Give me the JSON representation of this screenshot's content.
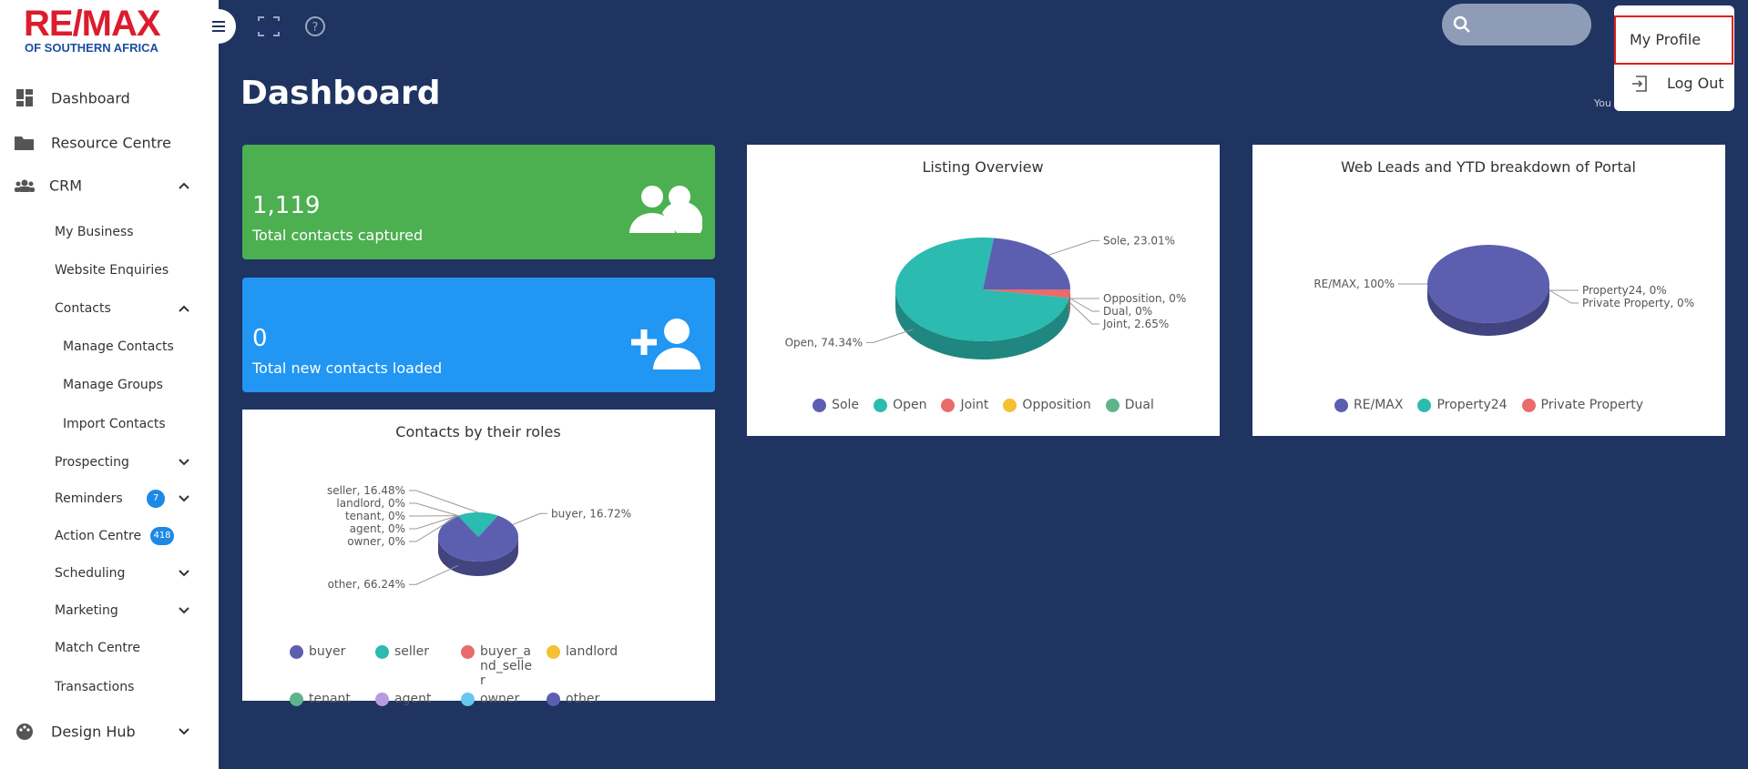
{
  "logo": {
    "brand": "RE/MAX",
    "region": "OF SOUTHERN AFRICA"
  },
  "sidebar": {
    "items": [
      {
        "label": "Dashboard"
      },
      {
        "label": "Resource Centre"
      },
      {
        "label": "CRM"
      },
      {
        "label": "My Business"
      },
      {
        "label": "Website Enquiries"
      },
      {
        "label": "Contacts"
      },
      {
        "label": "Manage Contacts"
      },
      {
        "label": "Manage Groups"
      },
      {
        "label": "Import Contacts"
      },
      {
        "label": "Prospecting"
      },
      {
        "label": "Reminders",
        "badge": 7
      },
      {
        "label": "Action Centre",
        "badge": 418
      },
      {
        "label": "Scheduling"
      },
      {
        "label": "Marketing"
      },
      {
        "label": "Match Centre"
      },
      {
        "label": "Transactions"
      },
      {
        "label": "Design Hub"
      }
    ]
  },
  "page_title": "Dashboard",
  "partial_text": "You",
  "user_menu": {
    "items": [
      "My Profile",
      "Log Out"
    ]
  },
  "stats": [
    {
      "value": "1,119",
      "label": "Total contacts captured"
    },
    {
      "value": "0",
      "label": "Total new contacts loaded"
    }
  ],
  "charts": [
    {
      "type": "pie",
      "title": "Listing Overview",
      "categories": [
        "Sole",
        "Open",
        "Joint",
        "Opposition",
        "Dual"
      ],
      "values": [
        23.01,
        74.34,
        2.65,
        0,
        0
      ],
      "value_labels": [
        "Sole, 23.01%",
        "Open, 74.34%",
        "Joint, 2.65%",
        "Opposition, 0%",
        "Dual, 0%"
      ],
      "colors": [
        "#5c5fb0",
        "#2bbbb0",
        "#e96b6b",
        "#f5c033",
        "#5fb58a"
      ]
    },
    {
      "type": "pie",
      "title": "Web Leads and YTD breakdown of Portal",
      "categories": [
        "RE/MAX",
        "Property24",
        "Private Property"
      ],
      "values": [
        100,
        0,
        0
      ],
      "value_labels": [
        "RE/MAX, 100%",
        "Property24, 0%",
        "Private Property, 0%"
      ],
      "colors": [
        "#5c5fb0",
        "#2bbbb0",
        "#e96b6b"
      ]
    },
    {
      "type": "pie",
      "title": "Contacts by their roles",
      "categories": [
        "buyer",
        "seller",
        "buyer_and_seller",
        "landlord",
        "tenant",
        "agent",
        "owner",
        "other"
      ],
      "values": [
        16.72,
        16.48,
        0,
        0,
        0,
        0,
        0,
        66.24
      ],
      "value_labels": [
        "buyer, 16.72%",
        "seller, 16.48%",
        null,
        "landlord, 0%",
        "tenant, 0%",
        "agent, 0%",
        "owner, 0%",
        "other, 66.24%"
      ],
      "colors": [
        "#5c5fb0",
        "#2bbbb0",
        "#e96b6b",
        "#f5c033",
        "#5fb58a",
        "#b79be0",
        "#66c8ee",
        "#5c5fb0"
      ]
    }
  ]
}
